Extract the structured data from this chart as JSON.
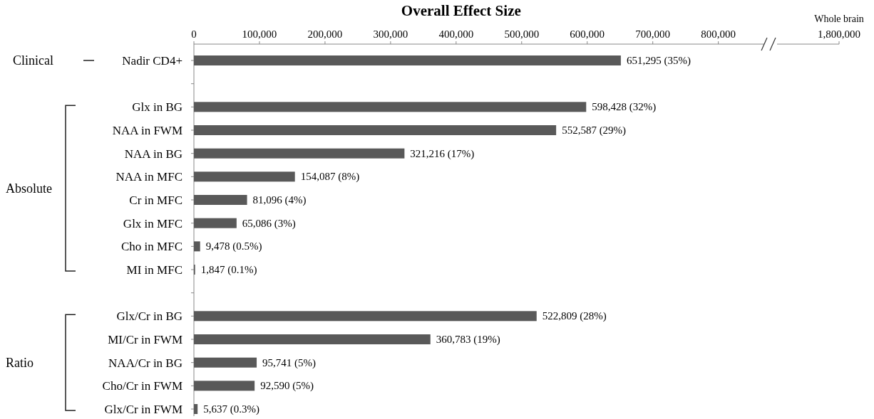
{
  "chart_data": {
    "type": "bar",
    "orientation": "horizontal",
    "title": "Overall Effect Size",
    "categories": [
      "Nadir CD4+",
      null,
      "Glx in BG",
      "NAA in FWM",
      "NAA in BG",
      "NAA in MFC",
      "Cr in MFC",
      "Glx in MFC",
      "Cho in MFC",
      "MI in MFC",
      null,
      "Glx/Cr in BG",
      "MI/Cr in FWM",
      "NAA/Cr in BG",
      "Cho/Cr in FWM",
      "Glx/Cr in FWM"
    ],
    "values": [
      651295,
      null,
      598428,
      552587,
      321216,
      154087,
      81096,
      65086,
      9478,
      1847,
      null,
      522809,
      360783,
      95741,
      92590,
      5637
    ],
    "value_labels": [
      "651,295 (35%)",
      null,
      "598,428 (32%)",
      "552,587 (29%)",
      "321,216 (17%)",
      "154,087 (8%)",
      "81,096 (4%)",
      "65,086 (3%)",
      "9,478 (0.5%)",
      "1,847 (0.1%)",
      null,
      "522,809 (28%)",
      "360,783 (19%)",
      "95,741 (5%)",
      "92,590 (5%)",
      "5,637 (0.3%)"
    ],
    "color": "#595959",
    "xlim": [
      0,
      870000
    ],
    "xticks": [
      {
        "value": 0,
        "label": "0"
      },
      {
        "value": 100000,
        "label": "100,000"
      },
      {
        "value": 200000,
        "label": "200,000"
      },
      {
        "value": 300000,
        "label": "300,000"
      },
      {
        "value": 400000,
        "label": "400,000"
      },
      {
        "value": 500000,
        "label": "500,000"
      },
      {
        "value": 600000,
        "label": "600,000"
      },
      {
        "value": 700000,
        "label": "700,000"
      },
      {
        "value": 800000,
        "label": "800,000"
      }
    ],
    "annotations": [
      "Clinical",
      "Absolute",
      "Ratio",
      "Whole brain",
      "1,800,000"
    ]
  }
}
